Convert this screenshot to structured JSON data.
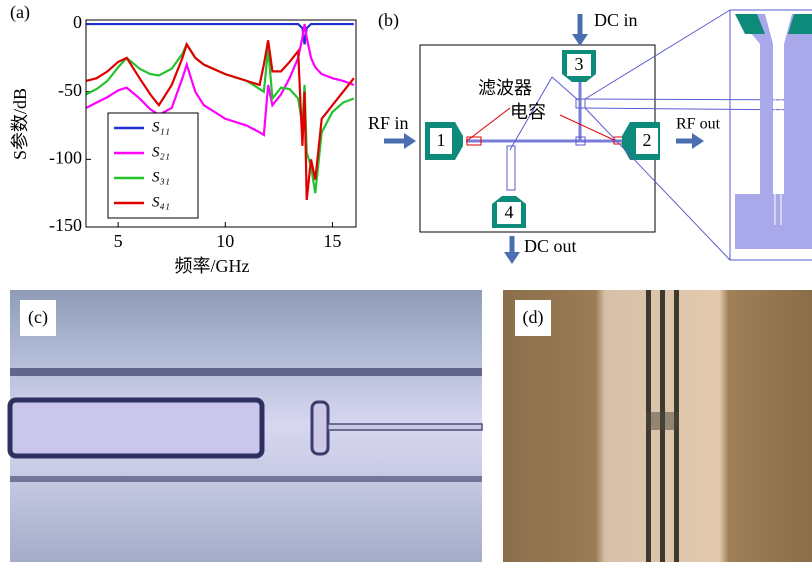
{
  "chart_data": {
    "type": "line",
    "panel_label": "(a)",
    "xlabel": "频率/GHz",
    "ylabel": "S参数/dB",
    "xlim": [
      3.5,
      16.1
    ],
    "ylim": [
      -150,
      3
    ],
    "xticks": [
      5,
      10,
      15
    ],
    "yticks": [
      -150,
      -100,
      -50,
      0
    ],
    "x": [
      3.5,
      4,
      4.5,
      5,
      5.4,
      6,
      6.5,
      6.9,
      7.5,
      8,
      8.2,
      8.6,
      9,
      10,
      11,
      11.6,
      11.8,
      12,
      12.2,
      12.6,
      13,
      13.4,
      13.6,
      13.7,
      13.8,
      14,
      14.2,
      14.5,
      15,
      15.5,
      16
    ],
    "series": [
      {
        "name": "S₁₁",
        "color": "#1f2fd0",
        "values": [
          0,
          0,
          0,
          0,
          0,
          0,
          0,
          0,
          0,
          0,
          0,
          0,
          0,
          0,
          0,
          0,
          0,
          0,
          0,
          0,
          0,
          0,
          -3,
          -15,
          -3,
          0,
          0,
          0,
          0,
          0,
          0
        ]
      },
      {
        "name": "S₂₁",
        "color": "#ff00ff",
        "values": [
          -62,
          -58,
          -54,
          -49,
          -47,
          -55,
          -63,
          -67,
          -62,
          -40,
          -30,
          -50,
          -60,
          -70,
          -75,
          -80,
          -82,
          -45,
          -60,
          -52,
          -40,
          -25,
          -10,
          0,
          -10,
          -25,
          -32,
          -37,
          -40,
          -42,
          -45
        ]
      },
      {
        "name": "S₃₁",
        "color": "#22c22c",
        "values": [
          -52,
          -48,
          -42,
          -32,
          -25,
          -33,
          -37,
          -38,
          -33,
          -22,
          -15,
          -25,
          -30,
          -37,
          -42,
          -48,
          -50,
          -18,
          -55,
          -47,
          -48,
          -55,
          -75,
          -45,
          -95,
          -105,
          -125,
          -80,
          -65,
          -58,
          -55
        ]
      },
      {
        "name": "S₄₁",
        "color": "#e00000",
        "values": [
          -42,
          -40,
          -35,
          -28,
          -25,
          -40,
          -52,
          -60,
          -45,
          -25,
          -15,
          -25,
          -30,
          -37,
          -42,
          -45,
          -30,
          -12,
          -35,
          -35,
          -28,
          -20,
          -90,
          -50,
          -130,
          -100,
          -115,
          -70,
          -60,
          -50,
          -40
        ]
      }
    ]
  },
  "diagram": {
    "panel_label": "(b)",
    "dc_in": "DC in",
    "dc_out": "DC out",
    "rf_in": "RF in",
    "rf_out": "RF out",
    "filter": "滤波器",
    "capacitor": "电容",
    "ports": [
      "1",
      "2",
      "3",
      "4"
    ]
  },
  "photos": [
    {
      "panel_label": "(c)"
    },
    {
      "panel_label": "(d)"
    }
  ]
}
